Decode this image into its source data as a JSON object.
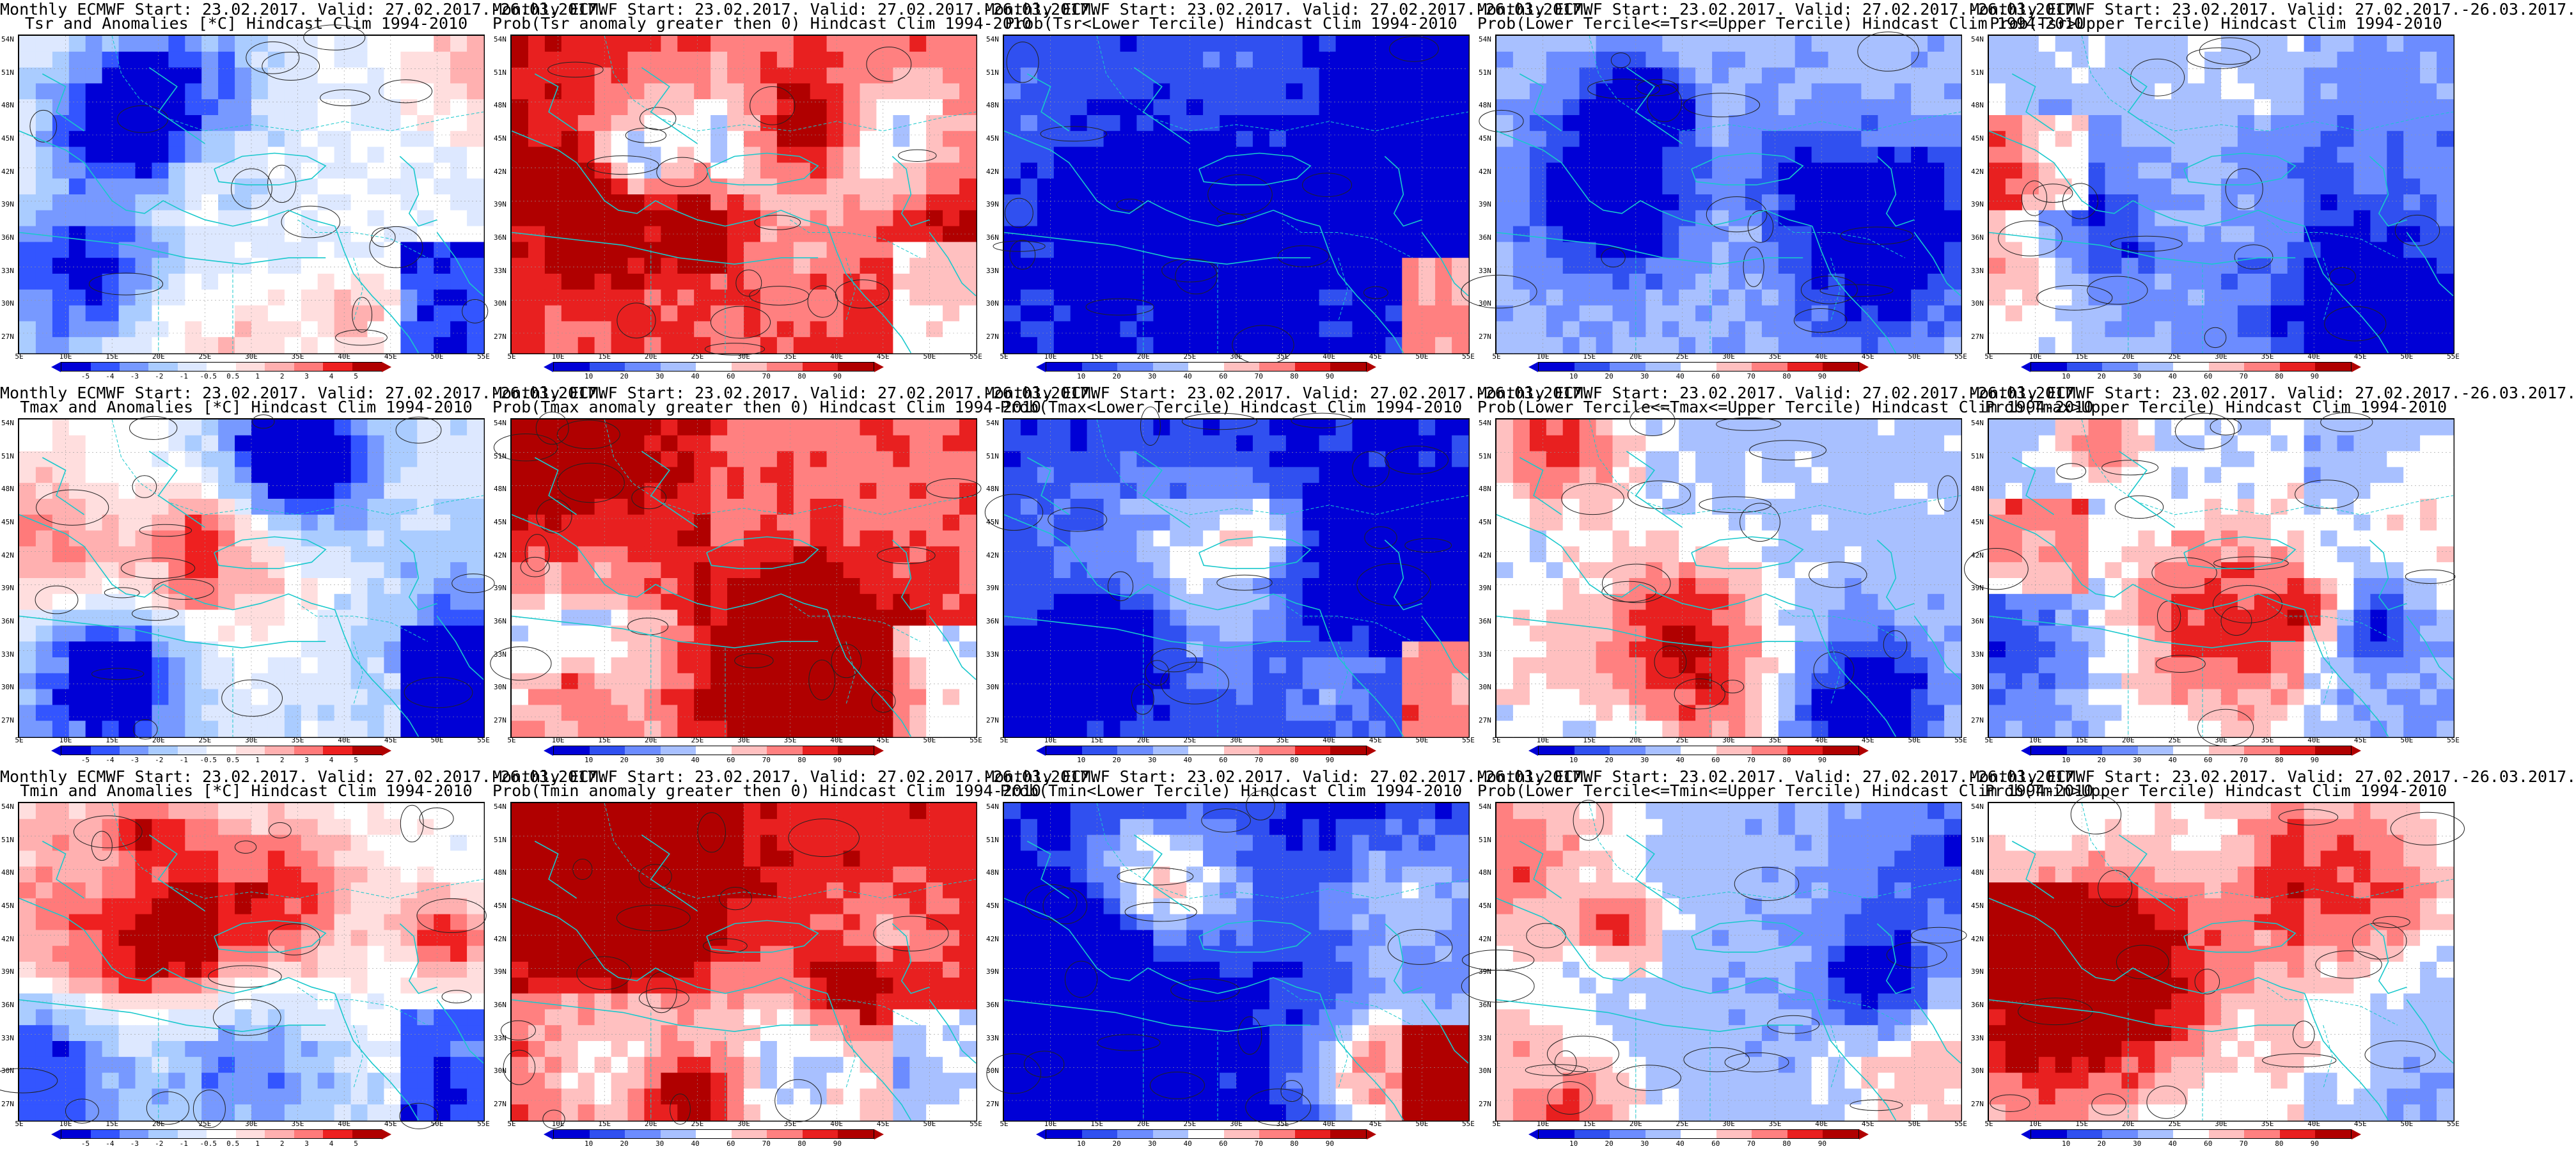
{
  "colors": {
    "coast": "#19c8cc",
    "contour": "#222222",
    "scale_temp": [
      "#0000d6",
      "#3355ff",
      "#7799ff",
      "#aaccff",
      "#dde8ff",
      "#ffffff",
      "#ffdede",
      "#ffb0b0",
      "#ff7a7a",
      "#ee2020",
      "#b00000"
    ],
    "scale_prob": [
      "#0000d6",
      "#3050f0",
      "#6c8cff",
      "#a8c0ff",
      "#ffffff",
      "#ffc0c0",
      "#ff8080",
      "#e82020",
      "#b00000"
    ]
  },
  "scales": {
    "temp": {
      "labels": [
        "-5",
        "-4",
        "-3",
        "-2",
        "-1",
        "-0.5",
        "0.5",
        "1",
        "2",
        "3",
        "4",
        "5"
      ]
    },
    "prob": {
      "labels": [
        "10",
        "20",
        "30",
        "40",
        "60",
        "70",
        "80",
        "90"
      ]
    }
  },
  "axes": {
    "lat": [
      "54N",
      "51N",
      "48N",
      "45N",
      "42N",
      "39N",
      "36N",
      "33N",
      "30N",
      "27N"
    ],
    "lon": [
      "5E",
      "10E",
      "15E",
      "20E",
      "25E",
      "30E",
      "35E",
      "40E",
      "45E",
      "50E",
      "55E"
    ]
  },
  "panels": [
    {
      "title1": "Monthly ECMWF Start: 23.02.2017. Valid: 27.02.2017.-26.03.2017.",
      "title2": "Tsr and Anomalies [*C] Hindcast Clim 1994-2010",
      "scale": "temp",
      "field": "anom",
      "mean": 0.45,
      "seed": 11
    },
    {
      "title1": "Monthly ECMWF Start: 23.02.2017. Valid: 27.02.2017.-26.03.2017.",
      "title2": "Prob(Tsr anomaly greater then 0) Hindcast Clim 1994-2010",
      "scale": "prob",
      "field": "pos",
      "mean": 0.8,
      "seed": 12
    },
    {
      "title1": "Monthly ECMWF Start: 23.02.2017. Valid: 27.02.2017.-26.03.2017.",
      "title2": "Prob(Tsr<Lower Tercile) Hindcast Clim 1994-2010",
      "scale": "prob",
      "field": "lower",
      "mean": 0.1,
      "seed": 13
    },
    {
      "title1": "Monthly ECMWF Start: 23.02.2017. Valid: 27.02.2017.-26.03.2017.",
      "title2": "Prob(Lower Tercile<=Tsr<=Upper Tercile) Hindcast Clim 1994-2010",
      "scale": "prob",
      "field": "middle",
      "mean": 0.38,
      "seed": 14
    },
    {
      "title1": "Monthly ECMWF Start: 23.02.2017. Valid: 27.02.2017.-26.03.2017.",
      "title2": "Prob(Tsr>Upper Tercile) Hindcast Clim 1994-2010",
      "scale": "prob",
      "field": "upper",
      "mean": 0.42,
      "seed": 15
    },
    {
      "title1": "Monthly ECMWF Start: 23.02.2017. Valid: 27.02.2017.-26.03.2017.",
      "title2": "Tmax and Anomalies [*C] Hindcast Clim 1994-2010",
      "scale": "temp",
      "field": "anom",
      "mean": 0.4,
      "seed": 21
    },
    {
      "title1": "Monthly ECMWF Start: 23.02.2017. Valid: 27.02.2017.-26.03.2017.",
      "title2": "Prob(Tmax anomaly greater then 0) Hindcast Clim 1994-2010",
      "scale": "prob",
      "field": "pos",
      "mean": 0.75,
      "seed": 22
    },
    {
      "title1": "Monthly ECMWF Start: 23.02.2017. Valid: 27.02.2017.-26.03.2017.",
      "title2": "Prob(Tmax<Lower Tercile) Hindcast Clim 1994-2010",
      "scale": "prob",
      "field": "lower",
      "mean": 0.12,
      "seed": 23
    },
    {
      "title1": "Monthly ECMWF Start: 23.02.2017. Valid: 27.02.2017.-26.03.2017.",
      "title2": "Prob(Lower Tercile<=Tmax<=Upper Tercile) Hindcast Clim 1994-2010",
      "scale": "prob",
      "field": "middle",
      "mean": 0.4,
      "seed": 24
    },
    {
      "title1": "Monthly ECMWF Start: 23.02.2017. Valid: 27.02.2017.-26.03.2017.",
      "title2": "Prob(Tmax>Upper Tercile) Hindcast Clim 1994-2010",
      "scale": "prob",
      "field": "upper",
      "mean": 0.4,
      "seed": 25
    },
    {
      "title1": "Monthly ECMWF Start: 23.02.2017. Valid: 27.02.2017.-26.03.2017.",
      "title2": "Tmin and Anomalies [*C] Hindcast Clim 1994-2010",
      "scale": "temp",
      "field": "anom",
      "mean": 0.5,
      "seed": 31
    },
    {
      "title1": "Monthly ECMWF Start: 23.02.2017. Valid: 27.02.2017.-26.03.2017.",
      "title2": "Prob(Tmin anomaly greater then 0) Hindcast Clim 1994-2010",
      "scale": "prob",
      "field": "pos",
      "mean": 0.85,
      "seed": 32
    },
    {
      "title1": "Monthly ECMWF Start: 23.02.2017. Valid: 27.02.2017.-26.03.2017.",
      "title2": "Prob(Tmin<Lower Tercile) Hindcast Clim 1994-2010",
      "scale": "prob",
      "field": "lower",
      "mean": 0.08,
      "seed": 33
    },
    {
      "title1": "Monthly ECMWF Start: 23.02.2017. Valid: 27.02.2017.-26.03.2017.",
      "title2": "Prob(Lower Tercile<=Tmin<=Upper Tercile) Hindcast Clim 1994-2010",
      "scale": "prob",
      "field": "middle",
      "mean": 0.38,
      "seed": 34
    },
    {
      "title1": "Monthly ECMWF Start: 23.02.2017. Valid: 27.02.2017.-26.03.2017.",
      "title2": "Prob(Tmin>Upper Tercile) Hindcast Clim 1994-2010",
      "scale": "prob",
      "field": "upper",
      "mean": 0.45,
      "seed": 35
    }
  ]
}
